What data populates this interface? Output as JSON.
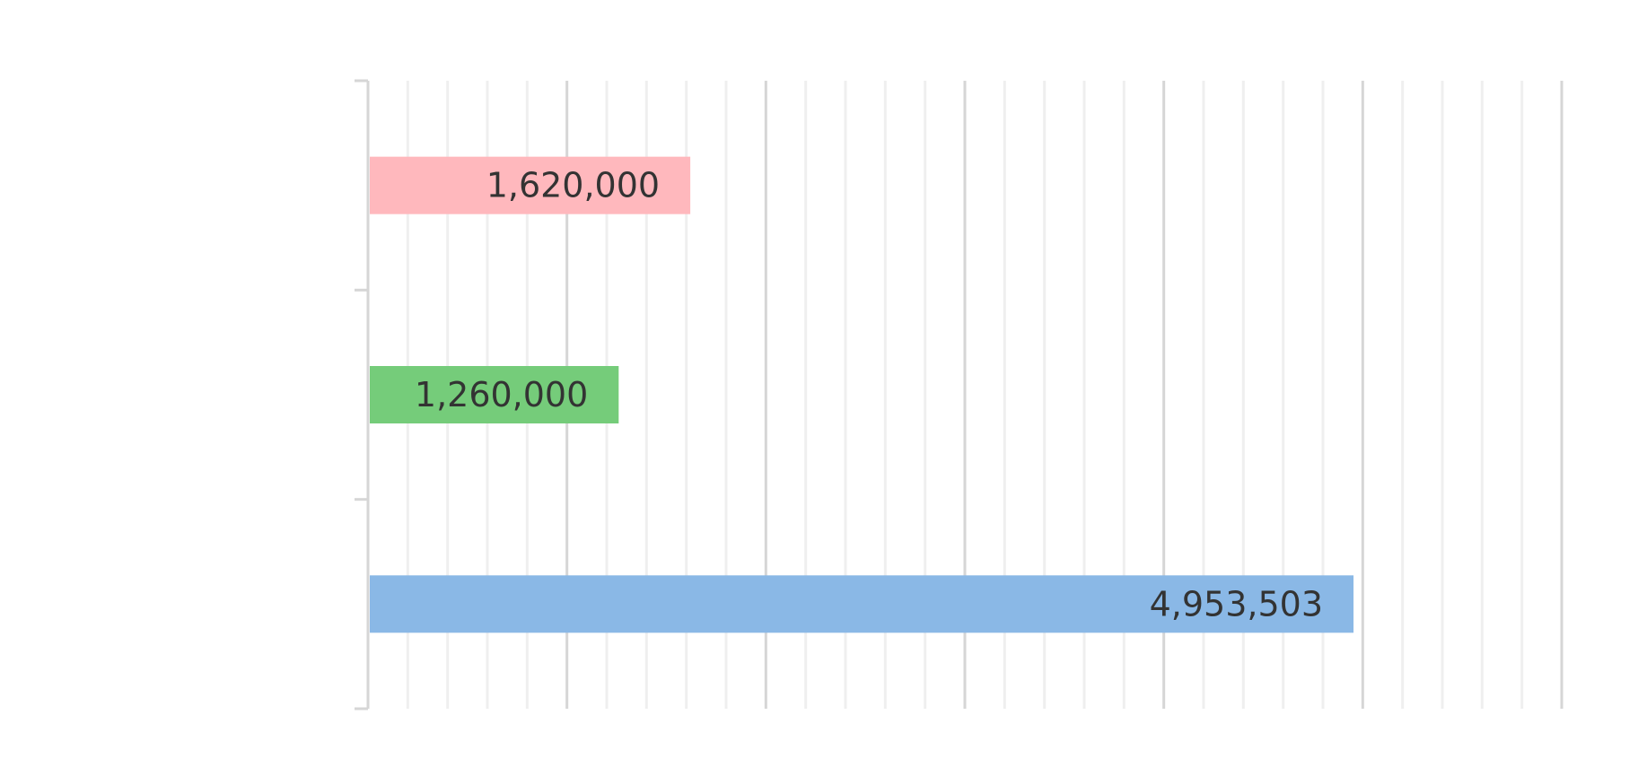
{
  "chart_data": {
    "type": "bar",
    "orientation": "horizontal",
    "categories": [
      "",
      "",
      ""
    ],
    "values": [
      1620000,
      1260000,
      4953503
    ],
    "data_labels": [
      "1,620,000",
      "1,260,000",
      "4,953,503"
    ],
    "bar_colors": [
      "#ffb8bd",
      "#75cc7a",
      "#8ab8e6"
    ],
    "xlim": [
      0,
      6000000
    ],
    "major_tick_step": 1000000,
    "minor_tick_step": 200000,
    "grid": true,
    "legend": "none",
    "title": "",
    "xlabel": "",
    "ylabel": ""
  }
}
